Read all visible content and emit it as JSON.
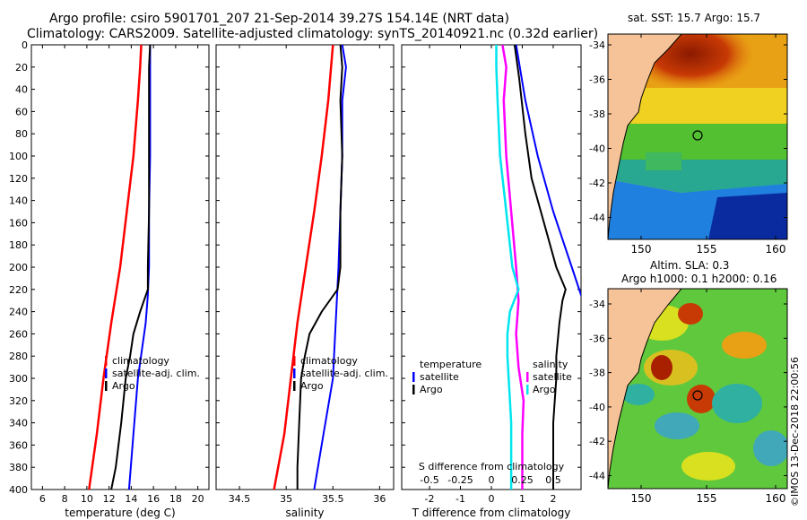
{
  "title_line1": "Argo profile: csiro 5901701_207 21-Sep-2014 39.27S 154.14E (NRT data)",
  "title_line2": "Climatology: CARS2009. Satellite-adjusted climatology: synTS_20140921.nc (0.32d earlier)",
  "map1_title": "sat. SST: 15.7 Argo: 15.7",
  "map2_title_line1": "Altim. SLA: 0.3",
  "map2_title_line2": "Argo h1000: 0.1 h2000: 0.16",
  "stamp": "©IMOS 13-Dec-2018 22:00:56",
  "colors": {
    "climatology": "#ff0000",
    "satellite": "#0000ff",
    "argo": "#000000",
    "s_satellite": "#ff00ff",
    "s_argo": "#00e5ee",
    "land": "#f5c397",
    "deep": "#0a2aa0"
  },
  "chart_data": [
    {
      "id": "temperature",
      "type": "line",
      "xlabel": "temperature (deg C)",
      "ylabel": "",
      "xlim": [
        5,
        21
      ],
      "ylim": [
        400,
        0
      ],
      "xticks": [
        6,
        8,
        10,
        12,
        14,
        16,
        18,
        20
      ],
      "xtick_labels": [
        "6",
        "8",
        "10",
        "12",
        "14",
        "16",
        "18",
        "20"
      ],
      "yticks": [
        0,
        20,
        40,
        60,
        80,
        100,
        120,
        140,
        160,
        180,
        200,
        220,
        240,
        260,
        280,
        300,
        320,
        340,
        360,
        380,
        400
      ],
      "legend": [
        "climatology",
        "satellite-adj. clim.",
        "Argo"
      ],
      "series": [
        {
          "name": "climatology",
          "depth": [
            0,
            20,
            50,
            100,
            150,
            200,
            250,
            300,
            350,
            400
          ],
          "values": [
            14.9,
            14.8,
            14.6,
            14.2,
            13.6,
            13.0,
            12.2,
            11.5,
            10.9,
            10.2
          ]
        },
        {
          "name": "satellite-adj. clim.",
          "depth": [
            0,
            20,
            50,
            100,
            150,
            200,
            225,
            250,
            300,
            350,
            400
          ],
          "values": [
            15.7,
            15.7,
            15.7,
            15.7,
            15.6,
            15.6,
            15.5,
            15.3,
            14.6,
            14.2,
            13.8
          ]
        },
        {
          "name": "Argo",
          "depth": [
            0,
            20,
            50,
            100,
            150,
            200,
            220,
            240,
            260,
            280,
            300,
            340,
            380,
            400
          ],
          "values": [
            15.7,
            15.6,
            15.6,
            15.6,
            15.6,
            15.5,
            15.5,
            14.8,
            14.2,
            13.9,
            13.5,
            13.1,
            12.6,
            12.2
          ]
        }
      ]
    },
    {
      "id": "salinity",
      "type": "line",
      "xlabel": "salinity",
      "ylabel": "",
      "xlim": [
        34.25,
        36.15
      ],
      "ylim": [
        400,
        0
      ],
      "xticks": [
        34.5,
        35,
        35.5,
        36
      ],
      "xtick_labels": [
        "34.5",
        "35",
        "35.5",
        "36"
      ],
      "legend": [
        "climatology",
        "satellite-adj. clim.",
        "Argo"
      ],
      "series": [
        {
          "name": "climatology",
          "depth": [
            0,
            50,
            100,
            150,
            200,
            250,
            300,
            350,
            400
          ],
          "values": [
            35.5,
            35.45,
            35.38,
            35.3,
            35.21,
            35.12,
            35.05,
            34.98,
            34.87
          ]
        },
        {
          "name": "satellite-adj. clim.",
          "depth": [
            0,
            20,
            50,
            100,
            150,
            200,
            250,
            300,
            350,
            400
          ],
          "values": [
            35.6,
            35.64,
            35.6,
            35.6,
            35.58,
            35.56,
            35.53,
            35.5,
            35.4,
            35.3
          ]
        },
        {
          "name": "Argo",
          "depth": [
            0,
            20,
            50,
            100,
            150,
            200,
            220,
            240,
            260,
            280,
            300,
            340,
            380,
            400
          ],
          "values": [
            35.58,
            35.6,
            35.58,
            35.6,
            35.58,
            35.58,
            35.55,
            35.38,
            35.25,
            35.2,
            35.16,
            35.14,
            35.12,
            35.12
          ]
        }
      ]
    },
    {
      "id": "difference",
      "type": "line",
      "xlabel": "T difference from climatology",
      "top_xlabel": "S difference from climatology",
      "xlim": [
        -2.9,
        2.9
      ],
      "ylim": [
        400,
        0
      ],
      "xticks": [
        -2,
        -1,
        0,
        1,
        2
      ],
      "xtick_labels": [
        "-2",
        "-1",
        "0",
        "1",
        "2"
      ],
      "top_ticks": [
        -0.5,
        -0.25,
        0,
        0.25,
        0.5
      ],
      "top_tick_labels": [
        "-0.5",
        "-0.25",
        "0",
        "0.25",
        "0.5"
      ],
      "s_xlim": [
        -0.725,
        0.725
      ],
      "legend_t_title": "temperature",
      "legend_t": [
        "satellite",
        "Argo"
      ],
      "legend_s_title": "salinity",
      "legend_s": [
        "satellite",
        "Argo"
      ],
      "series": [
        {
          "name": "T satellite",
          "depth": [
            0,
            50,
            100,
            150,
            200,
            225,
            250
          ],
          "values": [
            0.8,
            1.1,
            1.5,
            2.0,
            2.6,
            2.9,
            3.2
          ]
        },
        {
          "name": "T Argo",
          "depth": [
            0,
            30,
            80,
            120,
            150,
            200,
            220,
            230,
            250,
            280,
            300,
            340,
            380,
            400
          ],
          "values": [
            0.75,
            0.9,
            1.1,
            1.3,
            1.6,
            2.1,
            2.4,
            2.3,
            2.2,
            2.1,
            2.1,
            2.0,
            2.0,
            2.0
          ]
        },
        {
          "name": "S satellite",
          "depth": [
            0,
            20,
            50,
            100,
            150,
            200,
            230,
            260,
            290,
            320,
            350,
            400
          ],
          "values": [
            0.09,
            0.12,
            0.1,
            0.12,
            0.16,
            0.2,
            0.22,
            0.2,
            0.22,
            0.26,
            0.25,
            0.25
          ]
        },
        {
          "name": "S Argo",
          "depth": [
            0,
            20,
            50,
            100,
            150,
            200,
            220,
            240,
            260,
            280,
            300,
            340,
            380,
            400
          ],
          "values": [
            0.04,
            0.04,
            0.05,
            0.07,
            0.12,
            0.17,
            0.22,
            0.15,
            0.13,
            0.13,
            0.14,
            0.16,
            0.16,
            0.16
          ]
        }
      ]
    }
  ],
  "maps": [
    {
      "id": "sst_map",
      "lat_ticks": [
        "-34",
        "-36",
        "-38",
        "-40",
        "-42",
        "-44"
      ],
      "lon_ticks": [
        "150",
        "155",
        "160"
      ]
    },
    {
      "id": "sla_map",
      "lat_ticks": [
        "-34",
        "-36",
        "-38",
        "-40",
        "-42",
        "-44"
      ],
      "lon_ticks": [
        "150",
        "155",
        "160"
      ]
    }
  ]
}
